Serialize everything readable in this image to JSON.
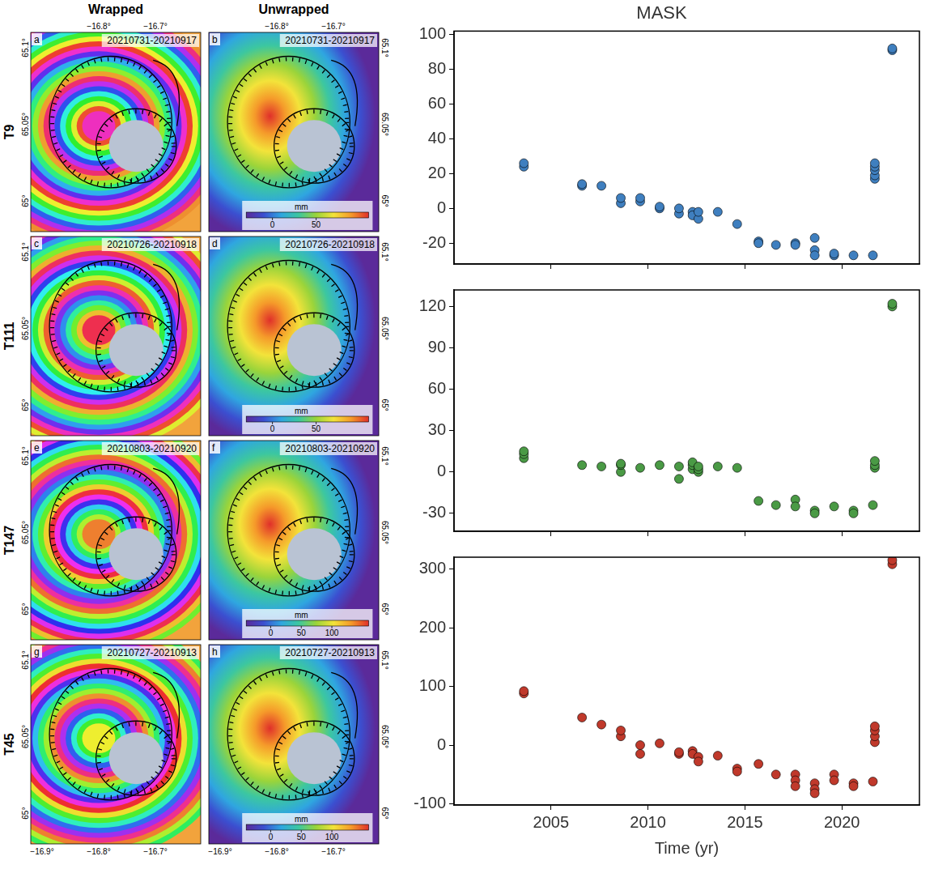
{
  "maps": {
    "column_titles": [
      "Wrapped",
      "Unwrapped"
    ],
    "lon_range": [
      -16.92,
      -16.62
    ],
    "lat_range": [
      64.98,
      65.11
    ],
    "lon_ticks_top": [
      {
        "value": -16.8,
        "label": "−16.8°"
      },
      {
        "value": -16.7,
        "label": "−16.7°"
      }
    ],
    "lon_ticks_bottom": [
      {
        "value": -16.9,
        "label": "−16.9°"
      },
      {
        "value": -16.8,
        "label": "−16.8°"
      },
      {
        "value": -16.7,
        "label": "−16.7°"
      }
    ],
    "lat_ticks": [
      {
        "value": 65.1,
        "label": "65.1°"
      },
      {
        "value": 65.05,
        "label": "65.05°"
      },
      {
        "value": 65,
        "label": "65°"
      }
    ],
    "rows": [
      {
        "track": "T9",
        "panels": [
          {
            "letter": "a",
            "dates": "20210731-20210917"
          },
          {
            "letter": "b",
            "dates": "20210731-20210917",
            "colorbar": {
              "label": "mm",
              "range": [
                -30,
                110
              ],
              "ticks": [
                0,
                50
              ]
            }
          }
        ]
      },
      {
        "track": "T111",
        "panels": [
          {
            "letter": "c",
            "dates": "20210726-20210918"
          },
          {
            "letter": "d",
            "dates": "20210726-20210918",
            "colorbar": {
              "label": "mm",
              "range": [
                -30,
                110
              ],
              "ticks": [
                0,
                50
              ]
            }
          }
        ]
      },
      {
        "track": "T147",
        "panels": [
          {
            "letter": "e",
            "dates": "20210803-20210920"
          },
          {
            "letter": "f",
            "dates": "20210803-20210920",
            "colorbar": {
              "label": "mm",
              "range": [
                -40,
                160
              ],
              "ticks": [
                0,
                50,
                100
              ]
            }
          }
        ]
      },
      {
        "track": "T45",
        "panels": [
          {
            "letter": "g",
            "dates": "20210727-20210913"
          },
          {
            "letter": "h",
            "dates": "20210727-20210913",
            "colorbar": {
              "label": "mm",
              "range": [
                -40,
                160
              ],
              "ticks": [
                0,
                50,
                100
              ]
            }
          }
        ]
      }
    ]
  },
  "chart_data": [
    {
      "type": "scatter",
      "title": "MASK",
      "tick_labels": "y",
      "xlim": [
        2000,
        2024
      ],
      "xticks": [
        2005,
        2010,
        2015,
        2020
      ],
      "ylim": [
        -32,
        102
      ],
      "yticks": [
        -20,
        0,
        20,
        40,
        60,
        80,
        100
      ],
      "series": [
        {
          "color": "#3f7fbf",
          "marker": "circle",
          "x": [
            2003.6,
            2003.6,
            2006.6,
            2006.6,
            2007.6,
            2008.6,
            2008.6,
            2009.6,
            2009.6,
            2010.6,
            2010.6,
            2011.6,
            2011.6,
            2012.3,
            2012.3,
            2012.6,
            2012.6,
            2013.6,
            2014.6,
            2015.7,
            2015.7,
            2016.6,
            2017.6,
            2017.6,
            2018.6,
            2018.6,
            2018.6,
            2019.6,
            2019.6,
            2020.6,
            2021.6,
            2021.7,
            2021.7,
            2021.7,
            2021.7,
            2021.7,
            2022.6,
            2022.6
          ],
          "values": [
            24,
            26,
            13,
            14,
            13,
            3,
            6,
            4,
            6,
            0,
            1,
            -3,
            0,
            -2,
            -4,
            -6,
            -2,
            -2,
            -9,
            -19,
            -20,
            -21,
            -20,
            -21,
            -17,
            -24,
            -27,
            -27,
            -26,
            -27,
            -27,
            17,
            19,
            22,
            24,
            26,
            91,
            92
          ]
        }
      ]
    },
    {
      "type": "scatter",
      "tick_labels": "y",
      "xlim": [
        2000,
        2024
      ],
      "xticks": [
        2005,
        2010,
        2015,
        2020
      ],
      "ylim": [
        -43,
        132
      ],
      "yticks": [
        -30,
        0,
        30,
        60,
        90,
        120
      ],
      "series": [
        {
          "color": "#4a9a45",
          "marker": "circle",
          "x": [
            2003.6,
            2003.6,
            2003.6,
            2006.6,
            2007.6,
            2008.6,
            2008.6,
            2008.6,
            2009.6,
            2010.6,
            2011.6,
            2011.6,
            2012.3,
            2012.3,
            2012.3,
            2012.6,
            2012.6,
            2012.6,
            2013.6,
            2014.6,
            2015.7,
            2016.6,
            2017.6,
            2017.6,
            2018.6,
            2018.6,
            2019.6,
            2020.6,
            2020.6,
            2021.6,
            2021.7,
            2021.7,
            2021.7,
            2022.6,
            2022.6
          ],
          "values": [
            10,
            13,
            15,
            5,
            4,
            0,
            5,
            6,
            3,
            5,
            -5,
            4,
            2,
            5,
            7,
            0,
            2,
            4,
            4,
            3,
            -21,
            -24,
            -20,
            -25,
            -28,
            -30,
            -25,
            -28,
            -30,
            -24,
            3,
            5,
            8,
            120,
            122
          ]
        }
      ]
    },
    {
      "type": "scatter",
      "x_label": "Time (yr)",
      "xlim": [
        2000,
        2024
      ],
      "xticks": [
        2005,
        2010,
        2015,
        2020
      ],
      "ylim": [
        -102,
        320
      ],
      "yticks": [
        -100,
        0,
        100,
        200,
        300
      ],
      "series": [
        {
          "color": "#c0392b",
          "marker": "circle",
          "x": [
            2003.6,
            2003.6,
            2006.6,
            2007.6,
            2008.6,
            2008.6,
            2009.6,
            2009.6,
            2010.6,
            2011.6,
            2011.6,
            2012.3,
            2012.3,
            2012.6,
            2012.6,
            2013.6,
            2014.6,
            2014.6,
            2015.7,
            2016.6,
            2017.6,
            2017.6,
            2017.6,
            2018.6,
            2018.6,
            2018.6,
            2019.6,
            2019.6,
            2020.6,
            2020.6,
            2021.6,
            2021.7,
            2021.7,
            2021.7,
            2021.7,
            2022.6,
            2022.6
          ],
          "values": [
            88,
            92,
            47,
            35,
            15,
            25,
            -15,
            0,
            3,
            -15,
            -12,
            -10,
            -15,
            -20,
            -28,
            -18,
            -40,
            -45,
            -32,
            -50,
            -50,
            -60,
            -70,
            -65,
            -75,
            -82,
            -50,
            -60,
            -65,
            -70,
            -62,
            5,
            15,
            25,
            32,
            308,
            315
          ]
        }
      ]
    }
  ]
}
